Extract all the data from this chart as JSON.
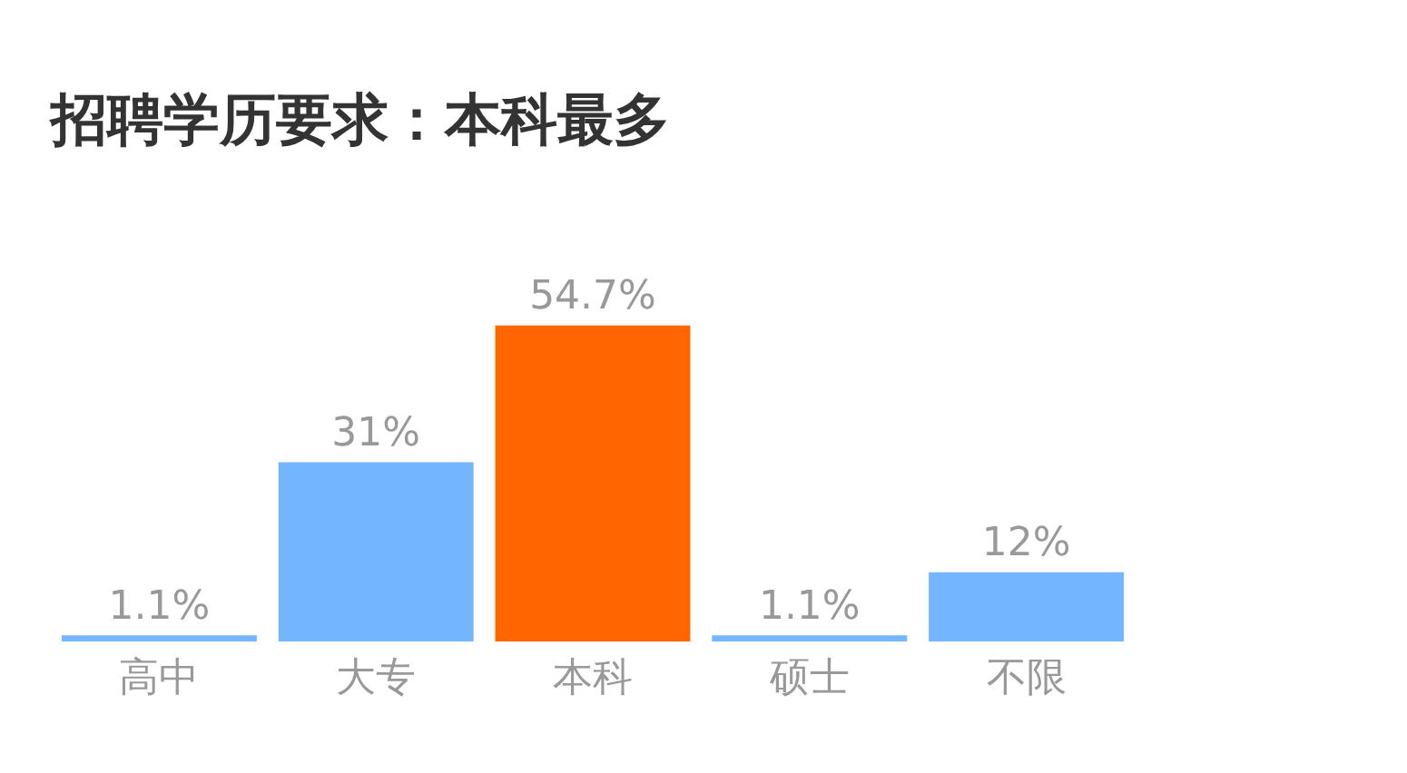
{
  "chart_data": {
    "type": "bar",
    "title": "招聘学历要求：本科最多",
    "categories": [
      "高中",
      "大专",
      "本科",
      "硕士",
      "不限"
    ],
    "values": [
      1.1,
      31,
      54.7,
      1.1,
      12
    ],
    "value_labels": [
      "1.1%",
      "31%",
      "54.7%",
      "1.1%",
      "12%"
    ],
    "colors": [
      "#74b5ff",
      "#74b5ff",
      "#ff6600",
      "#74b5ff",
      "#74b5ff"
    ],
    "grid": false,
    "legend": false,
    "tick_labels": "x"
  }
}
